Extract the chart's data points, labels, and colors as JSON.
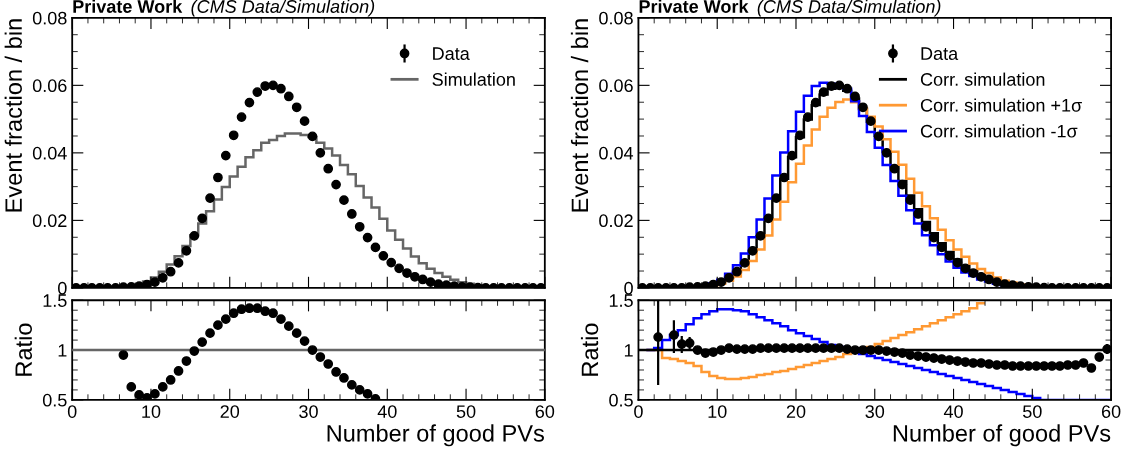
{
  "chart_data": [
    {
      "type": "histogram",
      "title": "Private Work",
      "subtitle": "(CMS Data/Simulation)",
      "ylabel": "Event fraction / bin",
      "bins": [
        0,
        1,
        2,
        3,
        4,
        5,
        6,
        7,
        8,
        9,
        10,
        11,
        12,
        13,
        14,
        15,
        16,
        17,
        18,
        19,
        20,
        21,
        22,
        23,
        24,
        25,
        26,
        27,
        28,
        29,
        30,
        31,
        32,
        33,
        34,
        35,
        36,
        37,
        38,
        39,
        40,
        41,
        42,
        43,
        44,
        45,
        46,
        47,
        48,
        49,
        50,
        51,
        52,
        53,
        54,
        55,
        56,
        57,
        58,
        59,
        60
      ],
      "series": [
        {
          "name": "Data",
          "type": "scatter",
          "color": "#000000",
          "x": [
            0.5,
            1.5,
            2.5,
            3.5,
            4.5,
            5.5,
            6.5,
            7.5,
            8.5,
            9.5,
            10.5,
            11.5,
            12.5,
            13.5,
            14.5,
            15.5,
            16.5,
            17.5,
            18.5,
            19.5,
            20.5,
            21.5,
            22.5,
            23.5,
            24.5,
            25.5,
            26.5,
            27.5,
            28.5,
            29.5,
            30.5,
            31.5,
            32.5,
            33.5,
            34.5,
            35.5,
            36.5,
            37.5,
            38.5,
            39.5,
            40.5,
            41.5,
            42.5,
            43.5,
            44.5,
            45.5,
            46.5,
            47.5,
            48.5,
            49.5,
            50.5,
            51.5,
            52.5,
            53.5,
            54.5,
            55.5,
            56.5,
            57.5,
            58.5,
            59.5
          ],
          "values": [
            0,
            0,
            0,
            0,
            0,
            0,
            0.0002,
            0.0003,
            0.0005,
            0.001,
            0.0017,
            0.003,
            0.0048,
            0.0074,
            0.011,
            0.0154,
            0.0206,
            0.0266,
            0.0327,
            0.0392,
            0.0452,
            0.0506,
            0.0549,
            0.058,
            0.0598,
            0.06,
            0.059,
            0.0567,
            0.0535,
            0.0494,
            0.0449,
            0.04,
            0.0353,
            0.0306,
            0.026,
            0.0219,
            0.0181,
            0.0149,
            0.012,
            0.0095,
            0.0075,
            0.0058,
            0.0044,
            0.0033,
            0.0025,
            0.0017,
            0.0011,
            0.0008,
            0.0005,
            0.0003,
            0.0002,
            0.0001,
            0,
            0,
            0,
            0,
            0,
            0,
            0,
            0
          ]
        },
        {
          "name": "Simulation",
          "color": "#666666",
          "values": [
            0,
            0,
            0,
            0,
            0,
            0.0001,
            0.0002,
            0.0005,
            0.0009,
            0.0019,
            0.0031,
            0.0048,
            0.0069,
            0.0094,
            0.0124,
            0.0156,
            0.0191,
            0.0227,
            0.0262,
            0.0299,
            0.033,
            0.0359,
            0.0387,
            0.0408,
            0.043,
            0.0438,
            0.045,
            0.0457,
            0.0457,
            0.0453,
            0.0447,
            0.043,
            0.0413,
            0.0392,
            0.0364,
            0.0337,
            0.0302,
            0.0268,
            0.0238,
            0.0205,
            0.017,
            0.0143,
            0.0117,
            0.0093,
            0.0073,
            0.0057,
            0.0044,
            0.0033,
            0.0024,
            0.0017,
            0.0012,
            0.0008,
            0.0005,
            0.0003,
            0.0002,
            0.0001,
            0,
            0,
            0,
            0
          ]
        }
      ],
      "xlim": [
        0,
        60
      ],
      "xticks": [
        0,
        10,
        20,
        30,
        40,
        50,
        60
      ],
      "ylim": [
        0,
        0.08
      ],
      "yticks": [
        {
          "value": 0,
          "label": "0"
        },
        {
          "value": 0.02,
          "label": "0.02"
        },
        {
          "value": 0.04,
          "label": "0.04"
        },
        {
          "value": 0.06,
          "label": "0.06"
        },
        {
          "value": 0.08,
          "label": "0.08"
        }
      ],
      "tick_labels": "y",
      "legend": "top right",
      "marker": "circle",
      "grid": false
    },
    {
      "type": "scatter",
      "xlabel": "Number of good PVs",
      "ylabel": "Ratio",
      "series": [
        {
          "color": "#000000",
          "x": [
            6.5,
            7.5,
            8.5,
            9.5,
            10.5,
            11.5,
            12.5,
            13.5,
            14.5,
            15.5,
            16.5,
            17.5,
            18.5,
            19.5,
            20.5,
            21.5,
            22.5,
            23.5,
            24.5,
            25.5,
            26.5,
            27.5,
            28.5,
            29.5,
            30.5,
            31.5,
            32.5,
            33.5,
            34.5,
            35.5,
            36.5,
            37.5,
            38.5
          ],
          "values": [
            0.95,
            0.63,
            0.55,
            0.52,
            0.56,
            0.63,
            0.7,
            0.79,
            0.89,
            0.99,
            1.08,
            1.17,
            1.25,
            1.31,
            1.37,
            1.41,
            1.42,
            1.42,
            1.39,
            1.37,
            1.31,
            1.24,
            1.17,
            1.09,
            1.0,
            0.93,
            0.86,
            0.78,
            0.72,
            0.65,
            0.6,
            0.56,
            0.51
          ]
        }
      ],
      "ref_lines": [
        {
          "axis": "y",
          "value": 1,
          "color": "#666666"
        }
      ],
      "xlim": [
        0,
        60
      ],
      "xticks": [
        0,
        10,
        20,
        30,
        40,
        50,
        60
      ],
      "ylim": [
        0.5,
        1.5
      ],
      "yticks": [
        0.5,
        1,
        1.5
      ],
      "marker": "circle",
      "grid": false
    },
    {
      "type": "histogram",
      "title": "Private Work",
      "subtitle": "(CMS Data/Simulation)",
      "ylabel": "Event fraction / bin",
      "bins": [
        0,
        1,
        2,
        3,
        4,
        5,
        6,
        7,
        8,
        9,
        10,
        11,
        12,
        13,
        14,
        15,
        16,
        17,
        18,
        19,
        20,
        21,
        22,
        23,
        24,
        25,
        26,
        27,
        28,
        29,
        30,
        31,
        32,
        33,
        34,
        35,
        36,
        37,
        38,
        39,
        40,
        41,
        42,
        43,
        44,
        45,
        46,
        47,
        48,
        49,
        50,
        51,
        52,
        53,
        54,
        55,
        56,
        57,
        58,
        59,
        60
      ],
      "series": [
        {
          "name": "Data",
          "type": "scatter",
          "color": "#000000",
          "x": [
            0.5,
            1.5,
            2.5,
            3.5,
            4.5,
            5.5,
            6.5,
            7.5,
            8.5,
            9.5,
            10.5,
            11.5,
            12.5,
            13.5,
            14.5,
            15.5,
            16.5,
            17.5,
            18.5,
            19.5,
            20.5,
            21.5,
            22.5,
            23.5,
            24.5,
            25.5,
            26.5,
            27.5,
            28.5,
            29.5,
            30.5,
            31.5,
            32.5,
            33.5,
            34.5,
            35.5,
            36.5,
            37.5,
            38.5,
            39.5,
            40.5,
            41.5,
            42.5,
            43.5,
            44.5,
            45.5,
            46.5,
            47.5,
            48.5,
            49.5,
            50.5,
            51.5,
            52.5,
            53.5,
            54.5,
            55.5,
            56.5,
            57.5,
            58.5,
            59.5
          ],
          "values": [
            0,
            0,
            0,
            0,
            0,
            0,
            0.0002,
            0.0003,
            0.0005,
            0.001,
            0.0017,
            0.003,
            0.0048,
            0.0074,
            0.011,
            0.0154,
            0.0206,
            0.0266,
            0.0327,
            0.0392,
            0.0452,
            0.0506,
            0.0549,
            0.058,
            0.0598,
            0.06,
            0.059,
            0.0567,
            0.0535,
            0.0494,
            0.0449,
            0.04,
            0.0353,
            0.0306,
            0.026,
            0.0219,
            0.0181,
            0.0149,
            0.012,
            0.0095,
            0.0075,
            0.0058,
            0.0044,
            0.0033,
            0.0025,
            0.0017,
            0.0011,
            0.0008,
            0.0005,
            0.0003,
            0.0002,
            0.0001,
            0,
            0,
            0,
            0,
            0,
            0,
            0,
            0
          ]
        },
        {
          "name": "Corr. simulation",
          "color": "#000000",
          "values": [
            0,
            0,
            0,
            0,
            0,
            0,
            0.0001,
            0.0003,
            0.0005,
            0.001,
            0.0017,
            0.003,
            0.0048,
            0.0074,
            0.011,
            0.0153,
            0.0204,
            0.0262,
            0.0323,
            0.0387,
            0.0446,
            0.0499,
            0.0542,
            0.0573,
            0.059,
            0.0593,
            0.0584,
            0.0561,
            0.053,
            0.0492,
            0.0451,
            0.0404,
            0.036,
            0.0317,
            0.0274,
            0.0233,
            0.0195,
            0.0162,
            0.0132,
            0.0106,
            0.0084,
            0.0066,
            0.0051,
            0.0038,
            0.0029,
            0.002,
            0.0013,
            0.001,
            0.0006,
            0.0004,
            0.0002,
            0.0001,
            0,
            0,
            0,
            0,
            0,
            0,
            0,
            0
          ]
        },
        {
          "name": "Corr. simulation +1σ",
          "color": "#ff9933",
          "values": [
            0,
            0,
            0,
            0,
            0,
            0,
            0.0001,
            0.0003,
            0.0004,
            0.0007,
            0.0012,
            0.0021,
            0.0034,
            0.0053,
            0.008,
            0.0114,
            0.0155,
            0.0203,
            0.0255,
            0.0313,
            0.0368,
            0.0422,
            0.0469,
            0.0507,
            0.0534,
            0.0551,
            0.0558,
            0.055,
            0.0533,
            0.0507,
            0.0478,
            0.044,
            0.0403,
            0.0365,
            0.0323,
            0.0282,
            0.0242,
            0.0206,
            0.0172,
            0.0141,
            0.0114,
            0.0092,
            0.0072,
            0.0056,
            0.0044,
            0.0031,
            0.0021,
            0.0016,
            0.001,
            0.0007,
            0.0004,
            0.0002,
            0.0001,
            0,
            0,
            0,
            0,
            0,
            0,
            0
          ]
        },
        {
          "name": "Corr. simulation -1σ",
          "color": "#0000ff",
          "values": [
            0,
            0,
            0,
            0,
            0,
            0,
            0.0001,
            0.0004,
            0.0007,
            0.0014,
            0.0024,
            0.0042,
            0.0067,
            0.0102,
            0.015,
            0.0203,
            0.0265,
            0.0333,
            0.0401,
            0.0464,
            0.0522,
            0.0569,
            0.0598,
            0.0608,
            0.0605,
            0.0595,
            0.059,
            0.0553,
            0.0509,
            0.0462,
            0.0415,
            0.0364,
            0.0317,
            0.0273,
            0.023,
            0.0191,
            0.0156,
            0.0126,
            0.01,
            0.0078,
            0.006,
            0.0046,
            0.0035,
            0.0025,
            0.0019,
            0.0012,
            0.0008,
            0.0006,
            0.0003,
            0.0002,
            0.0001,
            0,
            0,
            0,
            0,
            0,
            0,
            0,
            0,
            0
          ]
        }
      ],
      "xlim": [
        0,
        60
      ],
      "xticks": [
        0,
        10,
        20,
        30,
        40,
        50,
        60
      ],
      "ylim": [
        0,
        0.08
      ],
      "yticks": [
        {
          "value": 0,
          "label": "0"
        },
        {
          "value": 0.02,
          "label": "0.02"
        },
        {
          "value": 0.04,
          "label": "0.04"
        },
        {
          "value": 0.06,
          "label": "0.06"
        },
        {
          "value": 0.08,
          "label": "0.08"
        }
      ],
      "tick_labels": "y",
      "legend": "top right",
      "marker": "circle",
      "grid": false
    },
    {
      "type": "scatter",
      "xlabel": "Number of good PVs",
      "ylabel": "Ratio",
      "x": [
        0.5,
        1.5,
        2.5,
        3.5,
        4.5,
        5.5,
        6.5,
        7.5,
        8.5,
        9.5,
        10.5,
        11.5,
        12.5,
        13.5,
        14.5,
        15.5,
        16.5,
        17.5,
        18.5,
        19.5,
        20.5,
        21.5,
        22.5,
        23.5,
        24.5,
        25.5,
        26.5,
        27.5,
        28.5,
        29.5,
        30.5,
        31.5,
        32.5,
        33.5,
        34.5,
        35.5,
        36.5,
        37.5,
        38.5,
        39.5,
        40.5,
        41.5,
        42.5,
        43.5,
        44.5,
        45.5,
        46.5,
        47.5,
        48.5,
        49.5,
        50.5,
        51.5,
        52.5,
        53.5,
        54.5,
        55.5,
        56.5,
        57.5,
        58.5,
        59.5
      ],
      "series": [
        {
          "type": "histogram",
          "color": "#ff9933",
          "bins": [
            1,
            2,
            3,
            4,
            5,
            6,
            7,
            8,
            9,
            10,
            11,
            12,
            13,
            14,
            15,
            16,
            17,
            18,
            19,
            20,
            21,
            22,
            23,
            24,
            25,
            26,
            27,
            28,
            29,
            30,
            31,
            32,
            33,
            34,
            35,
            36,
            37,
            38,
            39,
            40,
            41,
            42,
            43,
            44
          ],
          "values": [
            1.0,
            1.0,
            0.92,
            0.91,
            0.89,
            0.87,
            0.84,
            0.78,
            0.74,
            0.72,
            0.71,
            0.71,
            0.72,
            0.73,
            0.75,
            0.76,
            0.78,
            0.79,
            0.81,
            0.83,
            0.85,
            0.87,
            0.89,
            0.91,
            0.93,
            0.96,
            0.98,
            1.0,
            1.03,
            1.06,
            1.09,
            1.12,
            1.15,
            1.18,
            1.21,
            1.24,
            1.27,
            1.3,
            1.33,
            1.36,
            1.39,
            1.42,
            1.47
          ]
        },
        {
          "type": "histogram",
          "color": "#0000ff",
          "bins": [
            1,
            2,
            3,
            4,
            5,
            6,
            7,
            8,
            9,
            10,
            11,
            12,
            13,
            14,
            15,
            16,
            17,
            18,
            19,
            20,
            21,
            22,
            23,
            24,
            25,
            26,
            27,
            28,
            29,
            30,
            31,
            32,
            33,
            34,
            35,
            36,
            37,
            38,
            39,
            40,
            41,
            42,
            43,
            44,
            45,
            46,
            47,
            48,
            49,
            50,
            51,
            52,
            53,
            54,
            55,
            56,
            57,
            58,
            59,
            60
          ],
          "values": [
            1.0,
            1.02,
            1.1,
            1.15,
            1.2,
            1.26,
            1.32,
            1.36,
            1.39,
            1.41,
            1.41,
            1.4,
            1.39,
            1.36,
            1.33,
            1.3,
            1.27,
            1.24,
            1.2,
            1.17,
            1.14,
            1.11,
            1.08,
            1.05,
            1.03,
            1.01,
            0.99,
            0.96,
            0.94,
            0.92,
            0.9,
            0.88,
            0.86,
            0.84,
            0.82,
            0.8,
            0.78,
            0.76,
            0.74,
            0.72,
            0.7,
            0.68,
            0.66,
            0.64,
            0.62,
            0.6,
            0.58,
            0.56,
            0.54,
            0.52,
            0.5,
            0.5,
            0.5,
            0.5,
            0.5,
            0.5,
            0.5,
            0.5,
            0.5
          ]
        },
        {
          "color": "#000000",
          "values": [
            null,
            null,
            1.13,
            null,
            1.15,
            1.06,
            1.07,
            1.0,
            0.97,
            0.98,
            1.0,
            1.02,
            1.01,
            1.01,
            1.01,
            1.02,
            1.02,
            1.02,
            1.02,
            1.02,
            1.02,
            1.02,
            1.02,
            1.02,
            1.02,
            1.02,
            1.01,
            1.0,
            1.0,
            1.0,
            1.0,
            0.99,
            0.98,
            0.97,
            0.95,
            0.94,
            0.93,
            0.92,
            0.91,
            0.9,
            0.89,
            0.88,
            0.87,
            0.87,
            0.86,
            0.85,
            0.85,
            0.84,
            0.84,
            0.84,
            0.84,
            0.84,
            0.84,
            0.84,
            0.85,
            0.85,
            0.87,
            0.82,
            0.93,
            1.01
          ],
          "errors": [
            null,
            null,
            [
              0.65,
              1.5
            ],
            null,
            [
              0.97,
              1.3
            ],
            [
              0.97,
              1.14
            ],
            [
              1.0,
              1.13
            ],
            null,
            null,
            null,
            null,
            null,
            null,
            null,
            null,
            null,
            null,
            null,
            null,
            null,
            null,
            null,
            null,
            null,
            null,
            null,
            null,
            null,
            null,
            null,
            null,
            null,
            null,
            null,
            null,
            null,
            null,
            null,
            null,
            null,
            null,
            null,
            null,
            null,
            null,
            null,
            null,
            null,
            null,
            null,
            null,
            null,
            null,
            null,
            null,
            null,
            null,
            null,
            [
              0.9,
              0.95
            ],
            [
              0.96,
              1.06
            ]
          ]
        }
      ],
      "ref_lines": [
        {
          "axis": "y",
          "value": 1,
          "color": "#000000"
        }
      ],
      "xlim": [
        0,
        60
      ],
      "xticks": [
        0,
        10,
        20,
        30,
        40,
        50,
        60
      ],
      "ylim": [
        0.5,
        1.5
      ],
      "yticks": [
        0.5,
        1,
        1.5
      ],
      "marker": "circle",
      "grid": false
    }
  ]
}
